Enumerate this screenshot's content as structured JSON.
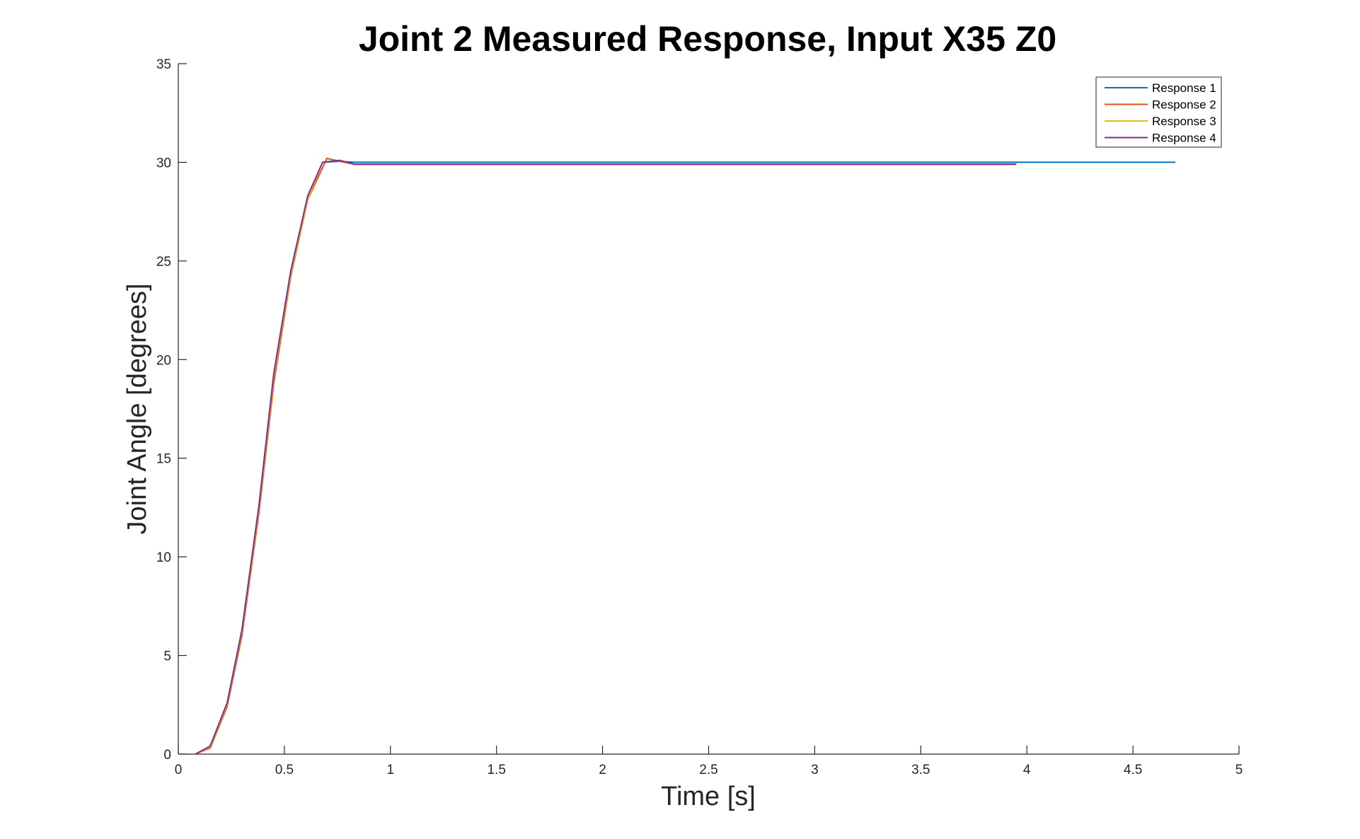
{
  "chart_data": {
    "type": "line",
    "title": "Joint 2 Measured Response, Input X35 Z0",
    "xlabel": "Time [s]",
    "ylabel": "Joint Angle [degrees]",
    "xlim": [
      0,
      5
    ],
    "ylim": [
      0,
      35
    ],
    "xticks": [
      0,
      0.5,
      1,
      1.5,
      2,
      2.5,
      3,
      3.5,
      4,
      4.5,
      5
    ],
    "yticks": [
      0,
      5,
      10,
      15,
      20,
      25,
      30,
      35
    ],
    "xtick_labels": [
      "0",
      "0.5",
      "1",
      "1.5",
      "2",
      "2.5",
      "3",
      "3.5",
      "4",
      "4.5",
      "5"
    ],
    "ytick_labels": [
      "0",
      "5",
      "10",
      "15",
      "20",
      "25",
      "30",
      "35"
    ],
    "grid": false,
    "legend_position": "top-right",
    "series": [
      {
        "name": "Response 1",
        "color": "#0072BD",
        "x": [
          0.08,
          0.15,
          0.23,
          0.3,
          0.38,
          0.45,
          0.53,
          0.61,
          0.68,
          0.76,
          0.83,
          1.0,
          2.0,
          3.0,
          4.0,
          4.7
        ],
        "y": [
          0,
          0.35,
          2.5,
          6.2,
          12.5,
          19.2,
          24.4,
          28.2,
          30.0,
          30.05,
          30.0,
          30.0,
          30.0,
          30.0,
          30.0,
          30.0
        ]
      },
      {
        "name": "Response 2",
        "color": "#D95319",
        "x": [
          0.08,
          0.15,
          0.23,
          0.3,
          0.38,
          0.45,
          0.53,
          0.61,
          0.7,
          0.76,
          0.83,
          1.0,
          2.0,
          3.0,
          3.95
        ],
        "y": [
          0,
          0.3,
          2.4,
          6.0,
          12.2,
          18.8,
          24.2,
          28.1,
          30.2,
          30.05,
          29.9,
          29.9,
          29.9,
          29.9,
          29.9
        ]
      },
      {
        "name": "Response 3",
        "color": "#EDB120",
        "x": [
          0.08,
          0.15,
          0.23,
          0.3,
          0.38,
          0.45,
          0.53,
          0.61,
          0.68,
          0.76,
          0.83,
          1.0,
          2.0,
          3.0,
          3.95
        ],
        "y": [
          0,
          0.35,
          2.5,
          6.2,
          12.4,
          19.1,
          24.3,
          28.1,
          30.0,
          30.1,
          29.9,
          29.9,
          29.9,
          29.9,
          29.9
        ]
      },
      {
        "name": "Response 4",
        "color": "#7E2F8E",
        "x": [
          0.08,
          0.15,
          0.23,
          0.3,
          0.38,
          0.45,
          0.53,
          0.61,
          0.68,
          0.76,
          0.83,
          1.0,
          2.0,
          3.0,
          3.95
        ],
        "y": [
          0,
          0.4,
          2.6,
          6.3,
          12.6,
          19.3,
          24.5,
          28.3,
          30.0,
          30.1,
          29.9,
          29.9,
          29.9,
          29.9,
          29.9
        ]
      }
    ]
  }
}
